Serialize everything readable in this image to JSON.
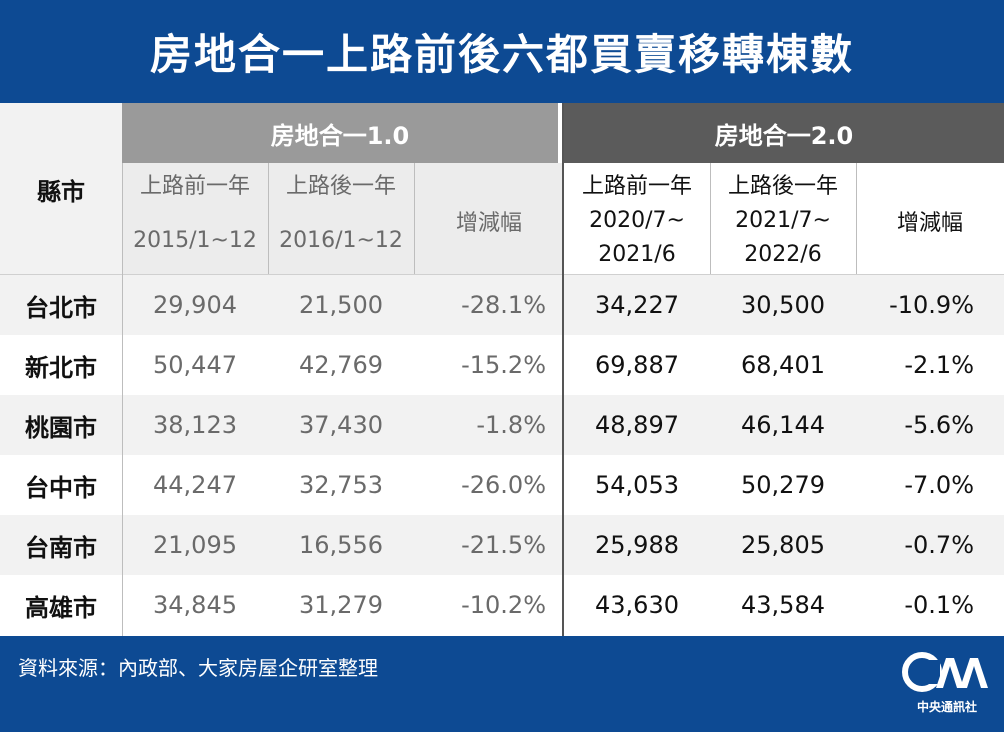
{
  "title": "房地合一上路前後六都買賣移轉棟數",
  "table": {
    "county_header": "縣市",
    "group1": {
      "label": "房地合一1.0",
      "col1": {
        "top": "上路前一年",
        "bottom": "2015/1~12"
      },
      "col2": {
        "top": "上路後一年",
        "bottom": "2016/1~12"
      },
      "col3": "增減幅"
    },
    "group2": {
      "label": "房地合一2.0",
      "col1": {
        "top": "上路前一年",
        "line2": "2020/7~",
        "line3": "2021/6"
      },
      "col2": {
        "top": "上路後一年",
        "line2": "2021/7~",
        "line3": "2022/6"
      },
      "col3": "增減幅"
    },
    "rows": [
      {
        "city": "台北市",
        "a": "29,904",
        "b": "21,500",
        "c": "-28.1%",
        "d": "34,227",
        "e": "30,500",
        "f": "-10.9%"
      },
      {
        "city": "新北市",
        "a": "50,447",
        "b": "42,769",
        "c": "-15.2%",
        "d": "69,887",
        "e": "68,401",
        "f": "-2.1%"
      },
      {
        "city": "桃園市",
        "a": "38,123",
        "b": "37,430",
        "c": "-1.8%",
        "d": "48,897",
        "e": "46,144",
        "f": "-5.6%"
      },
      {
        "city": "台中市",
        "a": "44,247",
        "b": "32,753",
        "c": "-26.0%",
        "d": "54,053",
        "e": "50,279",
        "f": "-7.0%"
      },
      {
        "city": "台南市",
        "a": "21,095",
        "b": "16,556",
        "c": "-21.5%",
        "d": "25,988",
        "e": "25,805",
        "f": "-0.7%"
      },
      {
        "city": "高雄市",
        "a": "34,845",
        "b": "31,279",
        "c": "-10.2%",
        "d": "43,630",
        "e": "43,584",
        "f": "-0.1%"
      }
    ]
  },
  "footer": {
    "source": "資料來源：內政部、大家房屋企研室整理",
    "logo_text": "中央通訊社",
    "logo_icon": "cna-logo-icon"
  },
  "colors": {
    "brand_blue": "#0d4a93",
    "group1_bar": "#9a9a9a",
    "group2_bar": "#5b5b5b",
    "light_bg": "#ececec",
    "stripe_bg": "#f2f2f2"
  }
}
